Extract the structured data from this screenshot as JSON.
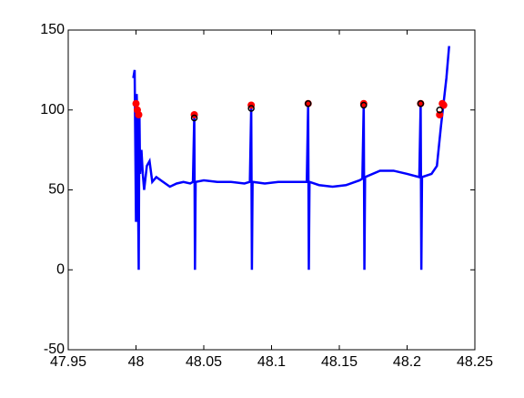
{
  "chart_data": {
    "type": "line",
    "xlim": [
      47.95,
      48.25
    ],
    "xticks": [
      47.95,
      48,
      48.05,
      48.1,
      48.15,
      48.2,
      48.25
    ],
    "ylim": [
      -50,
      150
    ],
    "yticks": [
      -50,
      0,
      50,
      100,
      150
    ],
    "series": [
      {
        "style": "line",
        "color": "#0000ff",
        "x": [
          47.998,
          47.999,
          48.0,
          48.0005,
          48.001,
          48.002,
          48.0025,
          48.003,
          48.004,
          48.005,
          48.006,
          48.008,
          48.01,
          48.012,
          48.015,
          48.02,
          48.025,
          48.03,
          48.035,
          48.04,
          48.042,
          48.043,
          48.0435,
          48.044,
          48.05,
          48.06,
          48.07,
          48.08,
          48.084,
          48.085,
          48.0855,
          48.086,
          48.095,
          48.105,
          48.115,
          48.126,
          48.127,
          48.1275,
          48.128,
          48.135,
          48.145,
          48.155,
          48.165,
          48.167,
          48.168,
          48.1685,
          48.169,
          48.18,
          48.19,
          48.2,
          48.209,
          48.21,
          48.2105,
          48.211,
          48.218,
          48.222,
          48.225,
          48.227,
          48.229,
          48.231
        ],
        "values": [
          120,
          125,
          30,
          110,
          95,
          0,
          100,
          60,
          75,
          60,
          50,
          65,
          68,
          55,
          58,
          55,
          52,
          54,
          55,
          54,
          55,
          97,
          0,
          55,
          56,
          55,
          55,
          54,
          55,
          102,
          0,
          55,
          54,
          55,
          55,
          55,
          104,
          0,
          55,
          53,
          52,
          53,
          56,
          57,
          104,
          0,
          58,
          62,
          62,
          60,
          58,
          104,
          0,
          58,
          60,
          65,
          90,
          105,
          120,
          140
        ]
      },
      {
        "style": "markers",
        "color": "#ff0000",
        "x": [
          48.0,
          48.001,
          48.002,
          48.043,
          48.085,
          48.127,
          48.168,
          48.21,
          48.224,
          48.226,
          48.227
        ],
        "values": [
          104,
          100,
          97,
          97,
          103,
          104,
          104,
          104,
          97,
          104,
          103
        ]
      },
      {
        "style": "rings",
        "color": "#000000",
        "x": [
          48.043,
          48.085,
          48.127,
          48.168,
          48.21,
          48.224
        ],
        "values": [
          95,
          101,
          104,
          103,
          104,
          100
        ]
      }
    ]
  }
}
